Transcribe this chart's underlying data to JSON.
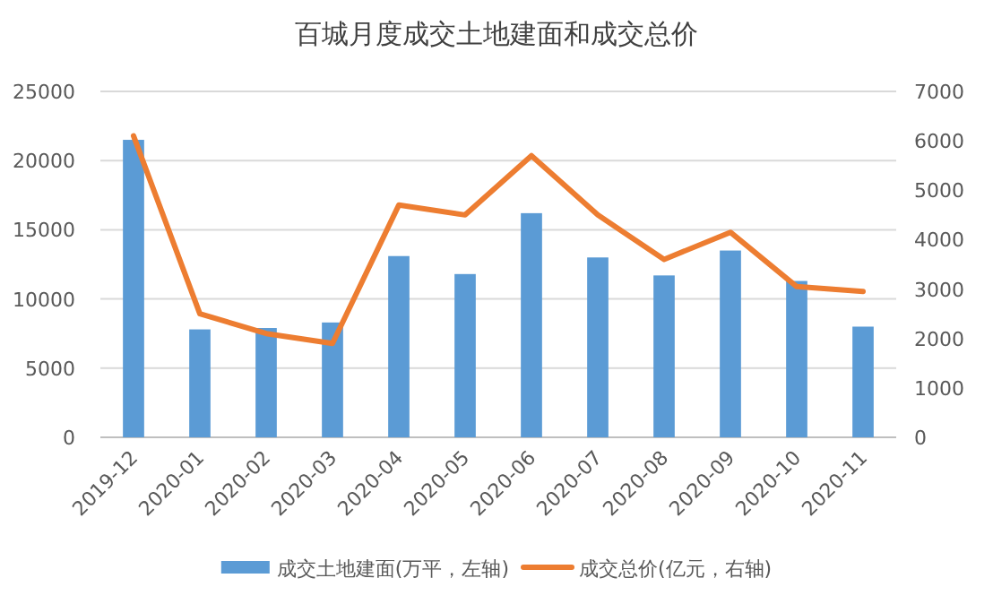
{
  "chart_data": {
    "type": "bar",
    "title": "百城月度成交土地建面和成交总价",
    "categories": [
      "2019-12",
      "2020-01",
      "2020-02",
      "2020-03",
      "2020-04",
      "2020-05",
      "2020-06",
      "2020-07",
      "2020-08",
      "2020-09",
      "2020-10",
      "2020-11"
    ],
    "series": [
      {
        "name": "成交土地建面(万平，左轴)",
        "color": "#5b9bd5",
        "values": [
          21500,
          7800,
          7900,
          8300,
          13100,
          11800,
          16200,
          13000,
          11700,
          13500,
          11300,
          8000
        ]
      },
      {
        "name": "成交总价(亿元，右轴)",
        "type": "line",
        "axis": "y2",
        "color": "#ed7d31",
        "values": [
          6100,
          2500,
          2100,
          1900,
          4700,
          4500,
          5700,
          4500,
          3600,
          4150,
          3050,
          2950
        ]
      }
    ],
    "ylim": [
      0,
      25000
    ],
    "yticks": [
      0,
      5000,
      10000,
      15000,
      20000,
      25000
    ],
    "y2lim": [
      0,
      7000
    ],
    "y2ticks": [
      0,
      1000,
      2000,
      3000,
      4000,
      5000,
      6000,
      7000
    ],
    "grid": "y",
    "legend": "bottom",
    "marker": "none",
    "line_style": "solid"
  }
}
